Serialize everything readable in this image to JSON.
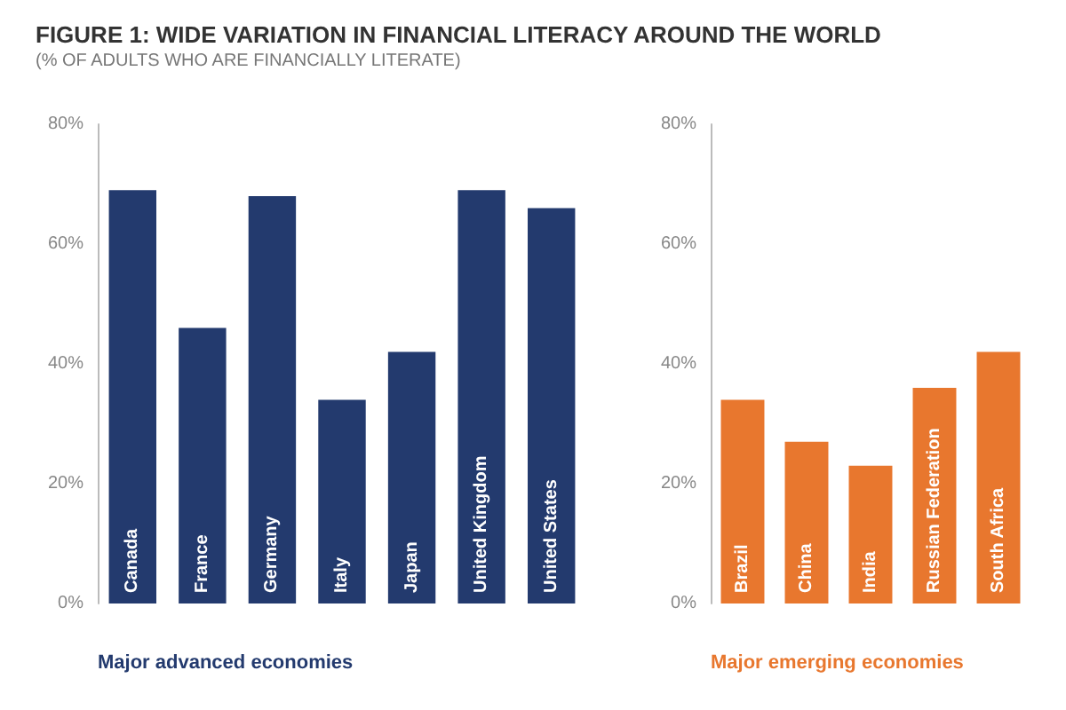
{
  "chart_data": [
    {
      "type": "bar",
      "title": "FIGURE 1: WIDE VARIATION IN FINANCIAL LITERACY AROUND THE WORLD",
      "subtitle": "(% OF ADULTS WHO ARE FINANCIALLY LITERATE)",
      "xlabel": "Major advanced economies",
      "categories": [
        "Canada",
        "France",
        "Germany",
        "Italy",
        "Japan",
        "United Kingdom",
        "United States"
      ],
      "values": [
        69,
        46,
        68,
        34,
        42,
        69,
        66
      ],
      "color": "#233a6e",
      "ylim": [
        0,
        80
      ],
      "yticks": [
        {
          "value": 0,
          "label": "0%"
        },
        {
          "value": 20,
          "label": "20%"
        },
        {
          "value": 40,
          "label": "40%"
        },
        {
          "value": 60,
          "label": "60%"
        },
        {
          "value": 80,
          "label": "80%"
        }
      ],
      "grid": false
    },
    {
      "type": "bar",
      "xlabel": "Major emerging economies",
      "categories": [
        "Brazil",
        "China",
        "India",
        "Russian Federation",
        "South Africa"
      ],
      "values": [
        34,
        27,
        23,
        36,
        42
      ],
      "color": "#e8772e",
      "ylim": [
        0,
        80
      ],
      "yticks": [
        {
          "value": 0,
          "label": "0%"
        },
        {
          "value": 20,
          "label": "20%"
        },
        {
          "value": 40,
          "label": "40%"
        },
        {
          "value": 60,
          "label": "60%"
        },
        {
          "value": 80,
          "label": "80%"
        }
      ],
      "grid": false
    }
  ]
}
